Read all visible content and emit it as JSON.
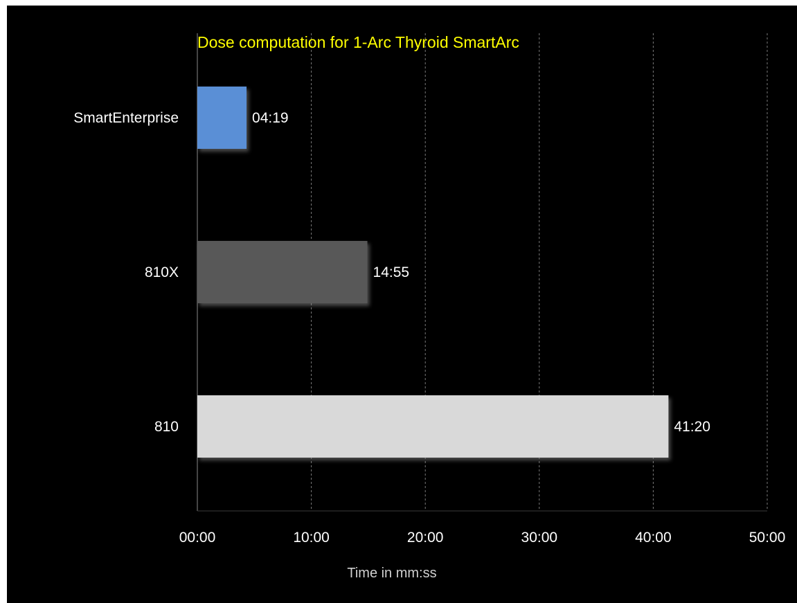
{
  "chart_data": {
    "type": "bar",
    "orientation": "horizontal",
    "title": "Dose computation for 1-Arc Thyroid SmartArc",
    "xlabel": "Time in mm:ss",
    "ylabel": "",
    "categories": [
      "SmartEnterprise",
      "810X",
      "810"
    ],
    "values_seconds": [
      259,
      895,
      2480
    ],
    "value_labels": [
      "04:19",
      "14:55",
      "41:20"
    ],
    "bar_colors": [
      "#5a8fd6",
      "#595959",
      "#d9d9d9"
    ],
    "x_range_seconds": [
      0,
      3000
    ],
    "x_ticks_seconds": [
      0,
      600,
      1200,
      1800,
      2400,
      3000
    ],
    "x_tick_labels": [
      "00:00",
      "10:00",
      "20:00",
      "30:00",
      "40:00",
      "50:00"
    ],
    "gridlines": "vertical dashed",
    "legend": "none",
    "background": "#000000",
    "title_color": "#ffff00",
    "text_color": "#ffffff"
  }
}
